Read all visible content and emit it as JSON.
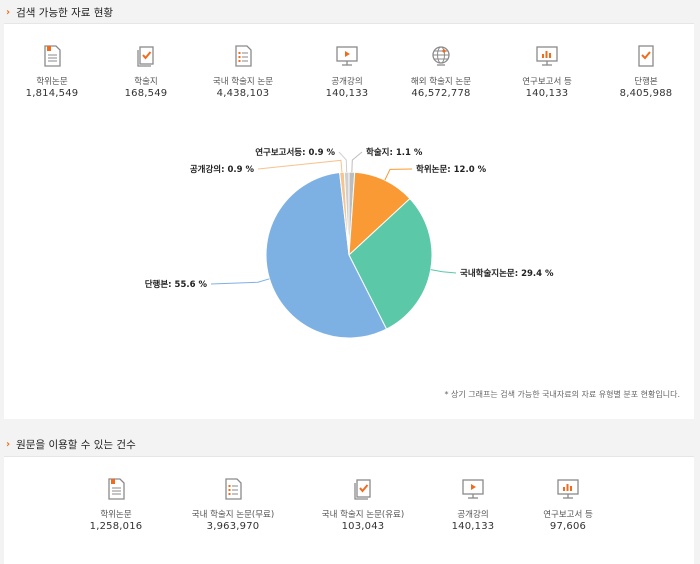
{
  "section1": {
    "title": "검색 가능한 자료 현황",
    "stats": [
      {
        "label": "학위논문",
        "value": "1,814,549",
        "icon": "thesis-document-icon"
      },
      {
        "label": "학술지",
        "value": "168,549",
        "icon": "journal-check-icon"
      },
      {
        "label": "국내 학술지 논문",
        "value": "4,438,103",
        "icon": "domestic-article-list-icon"
      },
      {
        "label": "공개강의",
        "value": "140,133",
        "icon": "lecture-monitor-play-icon"
      },
      {
        "label": "해외 학술지 논문",
        "value": "46,572,778",
        "icon": "globe-icon"
      },
      {
        "label": "연구보고서 등",
        "value": "140,133",
        "icon": "report-chart-monitor-icon"
      },
      {
        "label": "단행본",
        "value": "8,405,988",
        "icon": "book-check-icon"
      }
    ],
    "note": "* 상기 그래프는 검색 가능한 국내자료의 자료 유형별 분포 현황입니다."
  },
  "chart_data": {
    "type": "pie",
    "slices": [
      {
        "name": "학술지",
        "value": 1.1,
        "label": "학술지: 1.1 %",
        "color": "#bdbdbd"
      },
      {
        "name": "학위논문",
        "value": 12.0,
        "label": "학위논문: 12.0 %",
        "color": "#f99a34"
      },
      {
        "name": "국내학술지논문",
        "value": 29.4,
        "label": "국내학술지논문: 29.4 %",
        "color": "#5bc8a8"
      },
      {
        "name": "단행본",
        "value": 55.6,
        "label": "단행본: 55.6 %",
        "color": "#7eb1e3"
      },
      {
        "name": "공개강의",
        "value": 0.9,
        "label": "공개강의: 0.9 %",
        "color": "#f6c48f"
      },
      {
        "name": "연구보고서등",
        "value": 0.9,
        "label": "연구보고서등: 0.9 %",
        "color": "#cfcfcf"
      }
    ],
    "colors": {
      "connector": "#bbbbbb"
    }
  },
  "section2": {
    "title": "원문을 이용할 수 있는 건수",
    "stats": [
      {
        "label": "학위논문",
        "value": "1,258,016",
        "icon": "thesis-document-icon"
      },
      {
        "label": "국내 학술지 논문(무료)",
        "value": "3,963,970",
        "icon": "domestic-article-list-icon"
      },
      {
        "label": "국내 학술지 논문(유료)",
        "value": "103,043",
        "icon": "journal-check-icon"
      },
      {
        "label": "공개강의",
        "value": "140,133",
        "icon": "lecture-monitor-play-icon"
      },
      {
        "label": "연구보고서 등",
        "value": "97,606",
        "icon": "report-chart-monitor-icon"
      }
    ]
  },
  "colors": {
    "accent": "#f26b1d",
    "icon_gray": "#8a8a8a"
  }
}
